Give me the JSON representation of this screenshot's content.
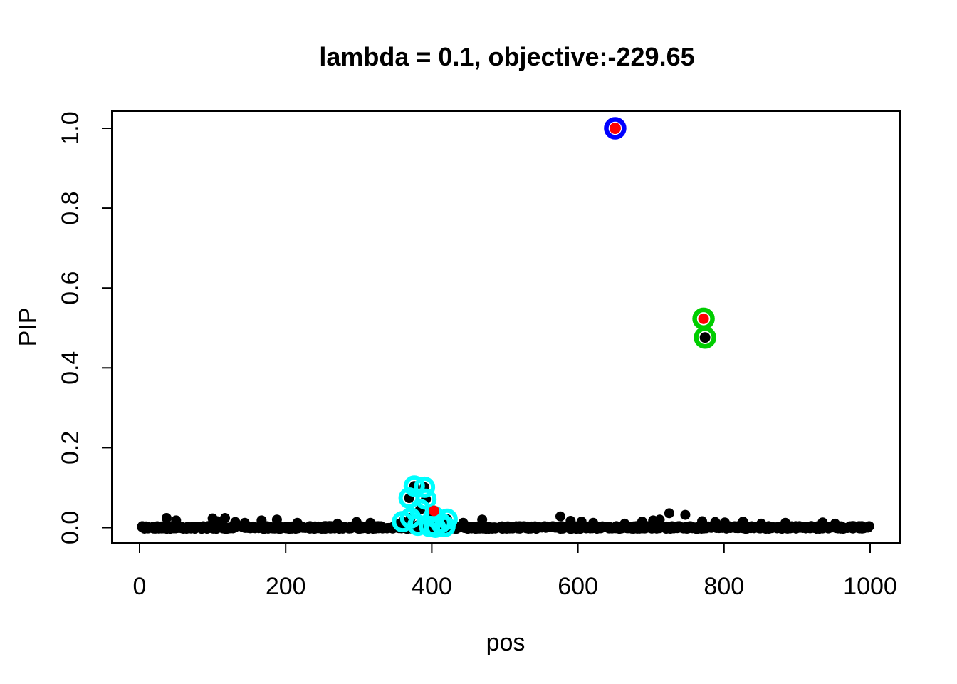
{
  "chart_data": {
    "type": "scatter",
    "title": "lambda = 0.1, objective:-229.65",
    "xlabel": "pos",
    "ylabel": "PIP",
    "xlim": [
      0,
      1000
    ],
    "ylim": [
      0.0,
      1.0
    ],
    "grid": false,
    "legend": "none",
    "background": "#ffffff",
    "xticks": {
      "values": [
        0,
        200,
        400,
        600,
        800,
        1000
      ],
      "labels": [
        "0",
        "200",
        "400",
        "600",
        "800",
        "1000"
      ]
    },
    "yticks": {
      "values": [
        0.0,
        0.2,
        0.4,
        0.6,
        0.8,
        1.0
      ],
      "labels": [
        "0.0",
        "0.2",
        "0.4",
        "0.6",
        "0.8",
        "1.0"
      ]
    },
    "colors": {
      "point_black": "#000000",
      "point_red": "#FF0000",
      "ring_blue": "#0000FF",
      "ring_green": "#00CD00",
      "ring_cyan": "#00FFFF"
    },
    "series": [
      {
        "name": "background-points",
        "marker": "dot",
        "color": "#000000",
        "radius": 7,
        "generate": {
          "count": 950,
          "seed": 20,
          "x_range": [
            2,
            1000
          ],
          "y_range": [
            -0.003,
            0.004
          ]
        }
      },
      {
        "name": "elevated-points",
        "marker": "dot",
        "color": "#000000",
        "radius": 7,
        "points": [
          [
            37,
            0.024
          ],
          [
            50,
            0.018
          ],
          [
            100,
            0.023
          ],
          [
            106,
            0.016
          ],
          [
            117,
            0.024
          ],
          [
            131,
            0.014
          ],
          [
            144,
            0.012
          ],
          [
            167,
            0.018
          ],
          [
            188,
            0.02
          ],
          [
            216,
            0.012
          ],
          [
            271,
            0.01
          ],
          [
            297,
            0.014
          ],
          [
            316,
            0.012
          ],
          [
            352,
            0.01
          ],
          [
            443,
            0.012
          ],
          [
            469,
            0.02
          ],
          [
            576,
            0.028
          ],
          [
            590,
            0.017
          ],
          [
            605,
            0.015
          ],
          [
            621,
            0.012
          ],
          [
            664,
            0.01
          ],
          [
            688,
            0.015
          ],
          [
            703,
            0.018
          ],
          [
            712,
            0.02
          ],
          [
            725,
            0.036
          ],
          [
            747,
            0.032
          ],
          [
            770,
            0.016
          ],
          [
            788,
            0.014
          ],
          [
            801,
            0.013
          ],
          [
            826,
            0.015
          ],
          [
            851,
            0.01
          ],
          [
            884,
            0.012
          ],
          [
            935,
            0.013
          ],
          [
            952,
            0.01
          ]
        ]
      },
      {
        "name": "cyan-circled-cluster",
        "marker": "ringed-dot",
        "ring_color": "#00FFFF",
        "fill_color": "#000000",
        "dot_radius": 7,
        "ring_radius": 12,
        "ring_width": 6,
        "points": [
          [
            360,
            0.015
          ],
          [
            369,
            0.074
          ],
          [
            371,
            0.024
          ],
          [
            376,
            0.104
          ],
          [
            381,
            0.006
          ],
          [
            384,
            0.045
          ],
          [
            390,
            0.101
          ],
          [
            392,
            0.071
          ],
          [
            397,
            0.003
          ],
          [
            403,
            0.028
          ],
          [
            405,
            0.001
          ],
          [
            412,
            0.012
          ],
          [
            418,
            0.003
          ],
          [
            421,
            0.021
          ]
        ]
      },
      {
        "name": "green-circled-point-black",
        "marker": "ringed-dot",
        "ring_color": "#00CD00",
        "fill_color": "#000000",
        "dot_radius": 7.5,
        "ring_radius": 12.5,
        "ring_width": 6.5,
        "points": [
          [
            774,
            0.476
          ]
        ]
      },
      {
        "name": "green-circled-point-red",
        "marker": "ringed-dot",
        "ring_color": "#00CD00",
        "fill_color": "#FF0000",
        "dot_radius": 7.5,
        "ring_radius": 12.5,
        "ring_width": 6.5,
        "points": [
          [
            772,
            0.523
          ]
        ]
      },
      {
        "name": "blue-circled-point",
        "marker": "ringed-dot",
        "ring_color": "#0000FF",
        "fill_color": "#FF0000",
        "dot_radius": 8,
        "ring_radius": 12.5,
        "ring_width": 6.5,
        "points": [
          [
            651,
            1.0
          ]
        ]
      },
      {
        "name": "red-point-in-cluster",
        "marker": "dot",
        "color": "#FF0000",
        "radius": 7.5,
        "points": [
          [
            403,
            0.042
          ]
        ]
      }
    ]
  }
}
